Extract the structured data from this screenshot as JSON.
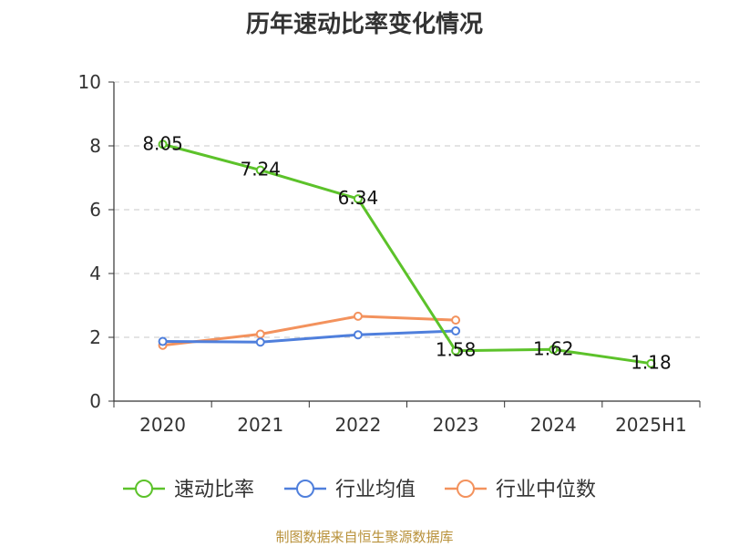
{
  "title": "历年速动比率变化情况",
  "footer": "制图数据来自恒生聚源数据库",
  "chart_data": {
    "type": "line",
    "categories": [
      "2020",
      "2021",
      "2022",
      "2023",
      "2024",
      "2025H1"
    ],
    "ylim": [
      0,
      10
    ],
    "yticks": [
      0,
      2,
      4,
      6,
      8,
      10
    ],
    "grid": true,
    "legend_position": "bottom",
    "series": [
      {
        "name": "速动比率",
        "color": "#5cc22a",
        "values": [
          8.05,
          7.24,
          6.34,
          1.58,
          1.62,
          1.18
        ],
        "labels": [
          "8.05",
          "7.24",
          "6.34",
          "1.58",
          "1.62",
          "1.18"
        ]
      },
      {
        "name": "行业均值",
        "color": "#4f7fdc",
        "values": [
          1.87,
          1.85,
          2.08,
          2.2,
          null,
          null
        ]
      },
      {
        "name": "行业中位数",
        "color": "#f3925d",
        "values": [
          1.75,
          2.1,
          2.66,
          2.54,
          null,
          null
        ]
      }
    ]
  }
}
